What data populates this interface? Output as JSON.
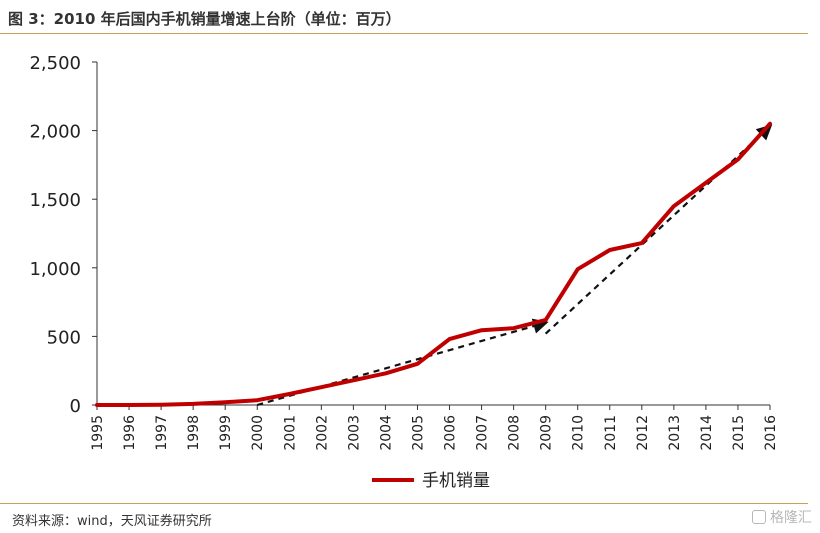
{
  "header": {
    "title": "图 3：2010 年后国内手机销量增速上台阶（单位：百万）"
  },
  "footer": {
    "source": "资料来源：wind，天风证券研究所",
    "watermark": "格隆汇"
  },
  "chart_data": {
    "type": "line",
    "title": "",
    "xlabel": "",
    "ylabel": "",
    "ylim": [
      0,
      2500
    ],
    "yticks": [
      0,
      500,
      1000,
      1500,
      2000,
      2500
    ],
    "ytick_labels": [
      "0",
      "500",
      "1,000",
      "1,500",
      "2,000",
      "2,500"
    ],
    "categories": [
      "1995",
      "1996",
      "1997",
      "1998",
      "1999",
      "2000",
      "2001",
      "2002",
      "2003",
      "2004",
      "2005",
      "2006",
      "2007",
      "2008",
      "2009",
      "2010",
      "2011",
      "2012",
      "2013",
      "2014",
      "2015",
      "2016"
    ],
    "series": [
      {
        "name": "手机销量",
        "color": "#c00000",
        "values": [
          0,
          0,
          2,
          8,
          20,
          35,
          80,
          130,
          180,
          230,
          300,
          480,
          545,
          560,
          620,
          990,
          1130,
          1180,
          1450,
          1620,
          1790,
          2050
        ]
      }
    ],
    "trend_lines": [
      {
        "from": [
          "2000",
          0
        ],
        "to": [
          "2009",
          600
        ],
        "color": "#111111",
        "style": "dashed",
        "arrow": true
      },
      {
        "from": [
          "2009",
          520
        ],
        "to": [
          "2016",
          2030
        ],
        "color": "#111111",
        "style": "dashed",
        "arrow": true
      }
    ],
    "grid": false,
    "legend": "bottom"
  }
}
